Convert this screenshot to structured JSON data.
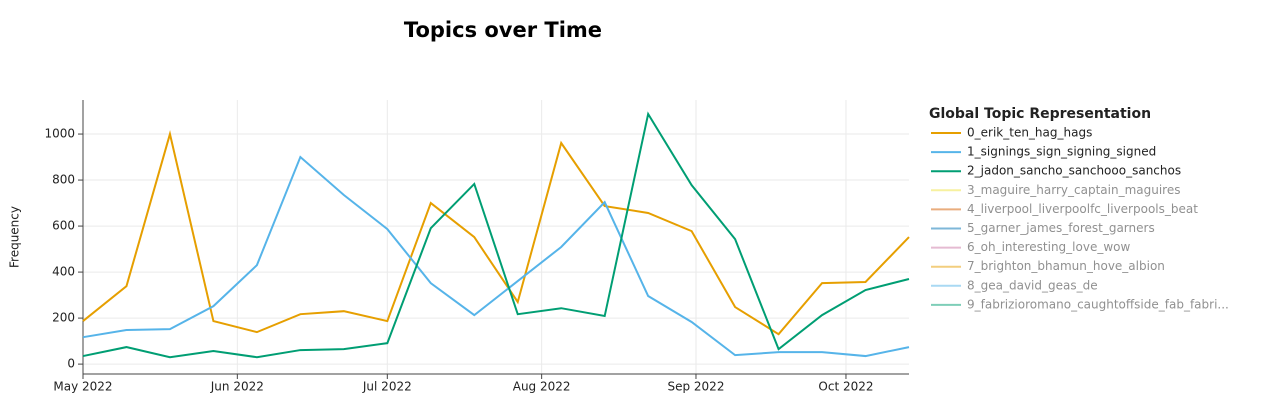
{
  "chart_data": {
    "type": "line",
    "title": "Topics over Time",
    "y_label": "Frequency",
    "legend_title": "Global Topic Representation",
    "legend_position": "right",
    "grid": true,
    "categories": [
      null,
      null,
      null,
      null,
      null,
      null,
      null,
      null,
      null,
      null,
      null,
      null,
      null,
      null,
      null,
      null,
      null,
      null,
      null,
      null
    ],
    "xlim": [
      0,
      19
    ],
    "xticks": [
      {
        "value": 0,
        "label": "May 2022"
      },
      {
        "value": 3.55,
        "label": "Jun 2022"
      },
      {
        "value": 7.0,
        "label": "Jul 2022"
      },
      {
        "value": 10.55,
        "label": "Aug 2022"
      },
      {
        "value": 14.1,
        "label": "Sep 2022"
      },
      {
        "value": 17.55,
        "label": "Oct 2022"
      }
    ],
    "ylim": [
      -43,
      1148
    ],
    "yticks": [
      0,
      200,
      400,
      600,
      800,
      1000
    ],
    "series": [
      {
        "name": "0_erik_ten_hag_hags",
        "color": "#E69F00",
        "values": [
          187,
          339,
          1000,
          187,
          139,
          217,
          230,
          187,
          700,
          552,
          270,
          961,
          687,
          657,
          578,
          248,
          130,
          352,
          357,
          552
        ]
      },
      {
        "name": "1_signings_sign_signing_signed",
        "color": "#56B4E9",
        "values": [
          117,
          148,
          152,
          252,
          430,
          900,
          735,
          587,
          352,
          213,
          361,
          509,
          704,
          296,
          183,
          39,
          52,
          52,
          35,
          74
        ]
      },
      {
        "name": "2_jadon_sancho_sanchooo_sanchos",
        "color": "#009E73",
        "values": [
          35,
          74,
          30,
          57,
          30,
          61,
          65,
          91,
          591,
          783,
          217,
          243,
          209,
          1087,
          778,
          543,
          65,
          213,
          322,
          370
        ]
      },
      {
        "name": "3_maguire_harry_captain_maguires",
        "color": "#F0E442",
        "visible": "legendonly"
      },
      {
        "name": "4_liverpool_liverpoolfc_liverpools_beat",
        "color": "#D55E00",
        "visible": "legendonly"
      },
      {
        "name": "5_garner_james_forest_garners",
        "color": "#0072B2",
        "visible": "legendonly"
      },
      {
        "name": "6_oh_interesting_love_wow",
        "color": "#CC79A7",
        "visible": "legendonly"
      },
      {
        "name": "7_brighton_bhamun_hove_albion",
        "color": "#E69F00",
        "visible": "legendonly"
      },
      {
        "name": "8_gea_david_geas_de",
        "color": "#56B4E9",
        "visible": "legendonly"
      },
      {
        "name": "9_fabrizioromano_caughtoffside_fab_fabri...",
        "color": "#009E73",
        "visible": "legendonly"
      }
    ]
  }
}
